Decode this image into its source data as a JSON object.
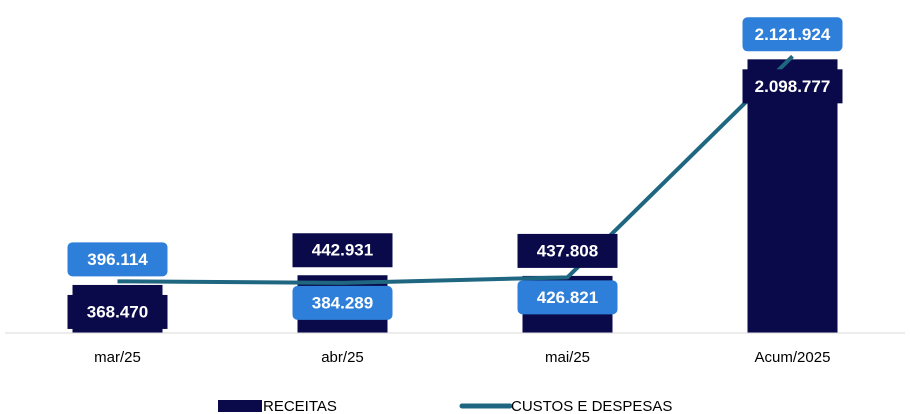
{
  "chart_data": {
    "type": "bar_line",
    "categories": [
      "mar/25",
      "abr/25",
      "mai/25",
      "Acum/2025"
    ],
    "series": [
      {
        "name": "RECEITAS",
        "type": "bar",
        "color": "#0a0a4a",
        "values": [
          368470,
          442931,
          437808,
          2098777
        ],
        "value_labels": [
          "368.470",
          "442.931",
          "437.808",
          "2.098.777"
        ]
      },
      {
        "name": "CUSTOS E DESPESAS",
        "type": "line",
        "color": "#1f6680",
        "label_color": "#2e7fd9",
        "values": [
          396114,
          384289,
          426821,
          2121924
        ],
        "value_labels": [
          "396.114",
          "384.289",
          "426.821",
          "2.121.924"
        ]
      }
    ],
    "ylim": [
      0,
      2500000
    ],
    "legend": "bottom"
  }
}
